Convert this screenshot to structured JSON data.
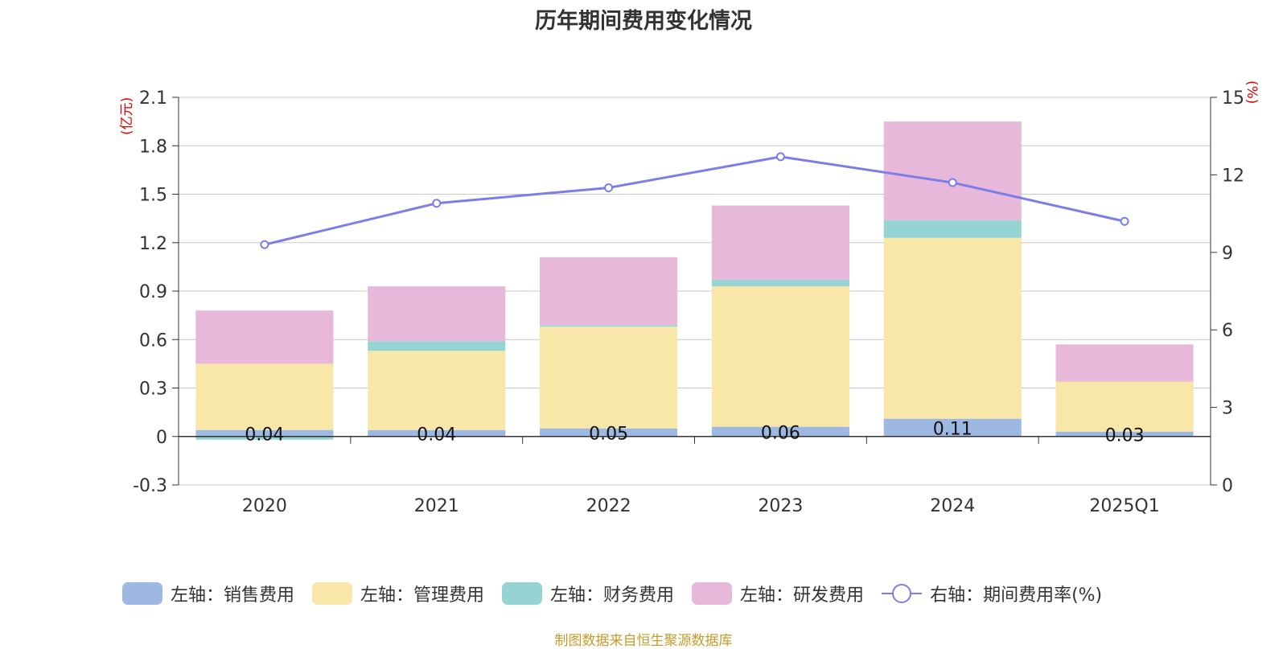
{
  "chart_data": {
    "type": "bar",
    "title": "历年期间费用变化情况",
    "categories": [
      "2020",
      "2021",
      "2022",
      "2023",
      "2024",
      "2025Q1"
    ],
    "left_axis": {
      "unit": "(亿元)",
      "ylim": [
        -0.3,
        2.1
      ],
      "ticks": [
        "2.1",
        "1.8",
        "1.5",
        "1.2",
        "0.9",
        "0.6",
        "0.3",
        "0",
        "-0.3"
      ]
    },
    "right_axis": {
      "unit": "(%)",
      "ylim": [
        0,
        15
      ],
      "ticks": [
        "15",
        "12",
        "9",
        "6",
        "3",
        "0"
      ]
    },
    "grid": true,
    "legend_position": "bottom",
    "series": [
      {
        "name": "左轴：销售费用",
        "type": "bar",
        "stack": true,
        "color": "#9db8e2",
        "values": [
          0.04,
          0.04,
          0.05,
          0.06,
          0.11,
          0.03
        ],
        "labels": [
          "0.04",
          "0.04",
          "0.05",
          "0.06",
          "0.11",
          "0.03"
        ]
      },
      {
        "name": "左轴：管理费用",
        "type": "bar",
        "stack": true,
        "color": "#f8e7a8",
        "values": [
          0.41,
          0.49,
          0.63,
          0.87,
          1.12,
          0.31
        ]
      },
      {
        "name": "左轴：财务费用",
        "type": "bar",
        "stack": true,
        "color": "#96d4d4",
        "values": [
          -0.02,
          0.06,
          0.01,
          0.04,
          0.11,
          0.0
        ]
      },
      {
        "name": "左轴：研发费用",
        "type": "bar",
        "stack": true,
        "color": "#e7b8d9",
        "values": [
          0.33,
          0.34,
          0.42,
          0.46,
          0.61,
          0.23
        ]
      },
      {
        "name": "右轴：期间费用率(%)",
        "type": "line",
        "axis": "right",
        "color": "#7b7ee8",
        "values": [
          9.3,
          10.9,
          11.5,
          12.7,
          11.7,
          10.2
        ]
      }
    ]
  },
  "source": "制图数据来自恒生聚源数据库"
}
